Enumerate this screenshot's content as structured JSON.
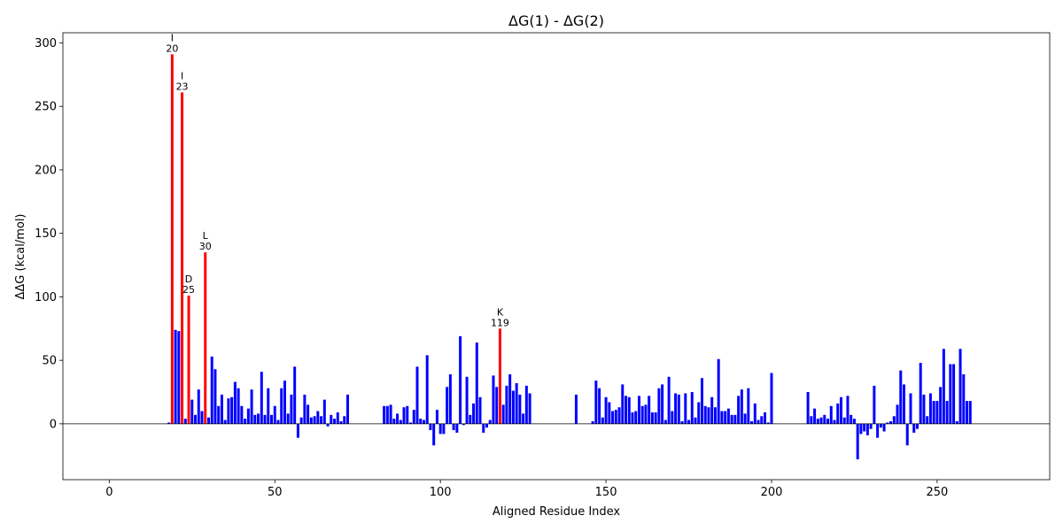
{
  "chart_data": {
    "type": "bar",
    "title": "ΔG(1) - ΔG(2)",
    "xlabel": "Aligned Residue Index",
    "ylabel": "ΔΔG (kcal/mol)",
    "xlim": [
      -14,
      284
    ],
    "ylim": [
      -44,
      308
    ],
    "xticks": [
      0,
      50,
      100,
      150,
      200,
      250
    ],
    "yticks": [
      0,
      50,
      100,
      150,
      200,
      250,
      300
    ],
    "colors": {
      "normal": "#0000ff",
      "highlight": "#ff0000",
      "zero_line": "#000000"
    },
    "series": [
      {
        "values": [
          [
            18,
            1
          ],
          [
            19,
            291
          ],
          [
            20,
            74
          ],
          [
            21,
            73
          ],
          [
            22,
            261
          ],
          [
            23,
            4
          ],
          [
            24,
            101
          ],
          [
            25,
            19
          ],
          [
            26,
            7
          ],
          [
            27,
            27
          ],
          [
            28,
            10
          ],
          [
            29,
            135
          ],
          [
            30,
            5
          ],
          [
            31,
            53
          ],
          [
            32,
            43
          ],
          [
            33,
            14
          ],
          [
            34,
            23
          ],
          [
            35,
            3
          ],
          [
            36,
            20
          ],
          [
            37,
            21
          ],
          [
            38,
            33
          ],
          [
            39,
            28
          ],
          [
            40,
            14
          ],
          [
            41,
            4
          ],
          [
            42,
            12
          ],
          [
            43,
            27
          ],
          [
            44,
            7
          ],
          [
            45,
            8
          ],
          [
            46,
            41
          ],
          [
            47,
            7
          ],
          [
            48,
            28
          ],
          [
            49,
            7
          ],
          [
            50,
            14
          ],
          [
            51,
            3
          ],
          [
            52,
            28
          ],
          [
            53,
            34
          ],
          [
            54,
            8
          ],
          [
            55,
            23
          ],
          [
            56,
            45
          ],
          [
            57,
            -11
          ],
          [
            58,
            5
          ],
          [
            59,
            23
          ],
          [
            60,
            15
          ],
          [
            61,
            5
          ],
          [
            62,
            6
          ],
          [
            63,
            10
          ],
          [
            64,
            6
          ],
          [
            65,
            19
          ],
          [
            66,
            -2
          ],
          [
            67,
            7
          ],
          [
            68,
            4
          ],
          [
            69,
            9
          ],
          [
            70,
            2
          ],
          [
            71,
            6
          ],
          [
            72,
            23
          ],
          [
            83,
            14
          ],
          [
            84,
            14
          ],
          [
            85,
            15
          ],
          [
            86,
            4
          ],
          [
            87,
            8
          ],
          [
            88,
            3
          ],
          [
            89,
            13
          ],
          [
            90,
            14
          ],
          [
            91,
            1
          ],
          [
            92,
            11
          ],
          [
            93,
            45
          ],
          [
            94,
            4
          ],
          [
            95,
            3
          ],
          [
            96,
            54
          ],
          [
            97,
            -5
          ],
          [
            98,
            -17
          ],
          [
            99,
            11
          ],
          [
            100,
            -8
          ],
          [
            101,
            -8
          ],
          [
            102,
            29
          ],
          [
            103,
            39
          ],
          [
            104,
            -5
          ],
          [
            105,
            -7
          ],
          [
            106,
            69
          ],
          [
            107,
            -1
          ],
          [
            108,
            37
          ],
          [
            109,
            7
          ],
          [
            110,
            16
          ],
          [
            111,
            64
          ],
          [
            112,
            21
          ],
          [
            113,
            -7
          ],
          [
            114,
            -3
          ],
          [
            115,
            3
          ],
          [
            116,
            38
          ],
          [
            117,
            29
          ],
          [
            118,
            75
          ],
          [
            119,
            15
          ],
          [
            120,
            30
          ],
          [
            121,
            39
          ],
          [
            122,
            26
          ],
          [
            123,
            32
          ],
          [
            124,
            23
          ],
          [
            125,
            8
          ],
          [
            126,
            30
          ],
          [
            127,
            24
          ],
          [
            141,
            23
          ],
          [
            146,
            2
          ],
          [
            147,
            34
          ],
          [
            148,
            28
          ],
          [
            149,
            5
          ],
          [
            150,
            21
          ],
          [
            151,
            17
          ],
          [
            152,
            10
          ],
          [
            153,
            11
          ],
          [
            154,
            13
          ],
          [
            155,
            31
          ],
          [
            156,
            22
          ],
          [
            157,
            21
          ],
          [
            158,
            9
          ],
          [
            159,
            10
          ],
          [
            160,
            22
          ],
          [
            161,
            14
          ],
          [
            162,
            15
          ],
          [
            163,
            22
          ],
          [
            164,
            9
          ],
          [
            165,
            9
          ],
          [
            166,
            28
          ],
          [
            167,
            31
          ],
          [
            168,
            3
          ],
          [
            169,
            37
          ],
          [
            170,
            10
          ],
          [
            171,
            24
          ],
          [
            172,
            23
          ],
          [
            173,
            2
          ],
          [
            174,
            24
          ],
          [
            175,
            3
          ],
          [
            176,
            25
          ],
          [
            177,
            5
          ],
          [
            178,
            17
          ],
          [
            179,
            36
          ],
          [
            180,
            14
          ],
          [
            181,
            13
          ],
          [
            182,
            21
          ],
          [
            183,
            13
          ],
          [
            184,
            51
          ],
          [
            185,
            10
          ],
          [
            186,
            10
          ],
          [
            187,
            12
          ],
          [
            188,
            7
          ],
          [
            189,
            7
          ],
          [
            190,
            22
          ],
          [
            191,
            27
          ],
          [
            192,
            8
          ],
          [
            193,
            28
          ],
          [
            194,
            2
          ],
          [
            195,
            16
          ],
          [
            196,
            3
          ],
          [
            197,
            6
          ],
          [
            198,
            9
          ],
          [
            199,
            1
          ],
          [
            200,
            40
          ],
          [
            211,
            25
          ],
          [
            212,
            6
          ],
          [
            213,
            12
          ],
          [
            214,
            4
          ],
          [
            215,
            5
          ],
          [
            216,
            7
          ],
          [
            217,
            4
          ],
          [
            218,
            14
          ],
          [
            219,
            3
          ],
          [
            220,
            16
          ],
          [
            221,
            21
          ],
          [
            222,
            5
          ],
          [
            223,
            22
          ],
          [
            224,
            7
          ],
          [
            225,
            4
          ],
          [
            226,
            -28
          ],
          [
            227,
            -8
          ],
          [
            228,
            -6
          ],
          [
            229,
            -9
          ],
          [
            230,
            -4
          ],
          [
            231,
            30
          ],
          [
            232,
            -11
          ],
          [
            233,
            -3
          ],
          [
            234,
            -6
          ],
          [
            235,
            1
          ],
          [
            236,
            2
          ],
          [
            237,
            6
          ],
          [
            238,
            15
          ],
          [
            239,
            42
          ],
          [
            240,
            31
          ],
          [
            241,
            -17
          ],
          [
            242,
            24
          ],
          [
            243,
            -7
          ],
          [
            244,
            -4
          ],
          [
            245,
            48
          ],
          [
            246,
            23
          ],
          [
            247,
            6
          ],
          [
            248,
            24
          ],
          [
            249,
            18
          ],
          [
            250,
            18
          ],
          [
            251,
            29
          ],
          [
            252,
            59
          ],
          [
            253,
            18
          ],
          [
            254,
            47
          ],
          [
            255,
            47
          ],
          [
            256,
            2
          ],
          [
            257,
            59
          ],
          [
            258,
            39
          ],
          [
            259,
            18
          ],
          [
            260,
            18
          ]
        ]
      }
    ],
    "highlighted": [
      19,
      22,
      24,
      29,
      118
    ],
    "annotations": [
      {
        "x": 19,
        "y": 291,
        "letter": "I",
        "index": "20"
      },
      {
        "x": 22,
        "y": 261,
        "letter": "I",
        "index": "23"
      },
      {
        "x": 29,
        "y": 135,
        "letter": "L",
        "index": "30"
      },
      {
        "x": 24,
        "y": 101,
        "letter": "D",
        "index": "25"
      },
      {
        "x": 118,
        "y": 75,
        "letter": "K",
        "index": "119"
      }
    ]
  }
}
